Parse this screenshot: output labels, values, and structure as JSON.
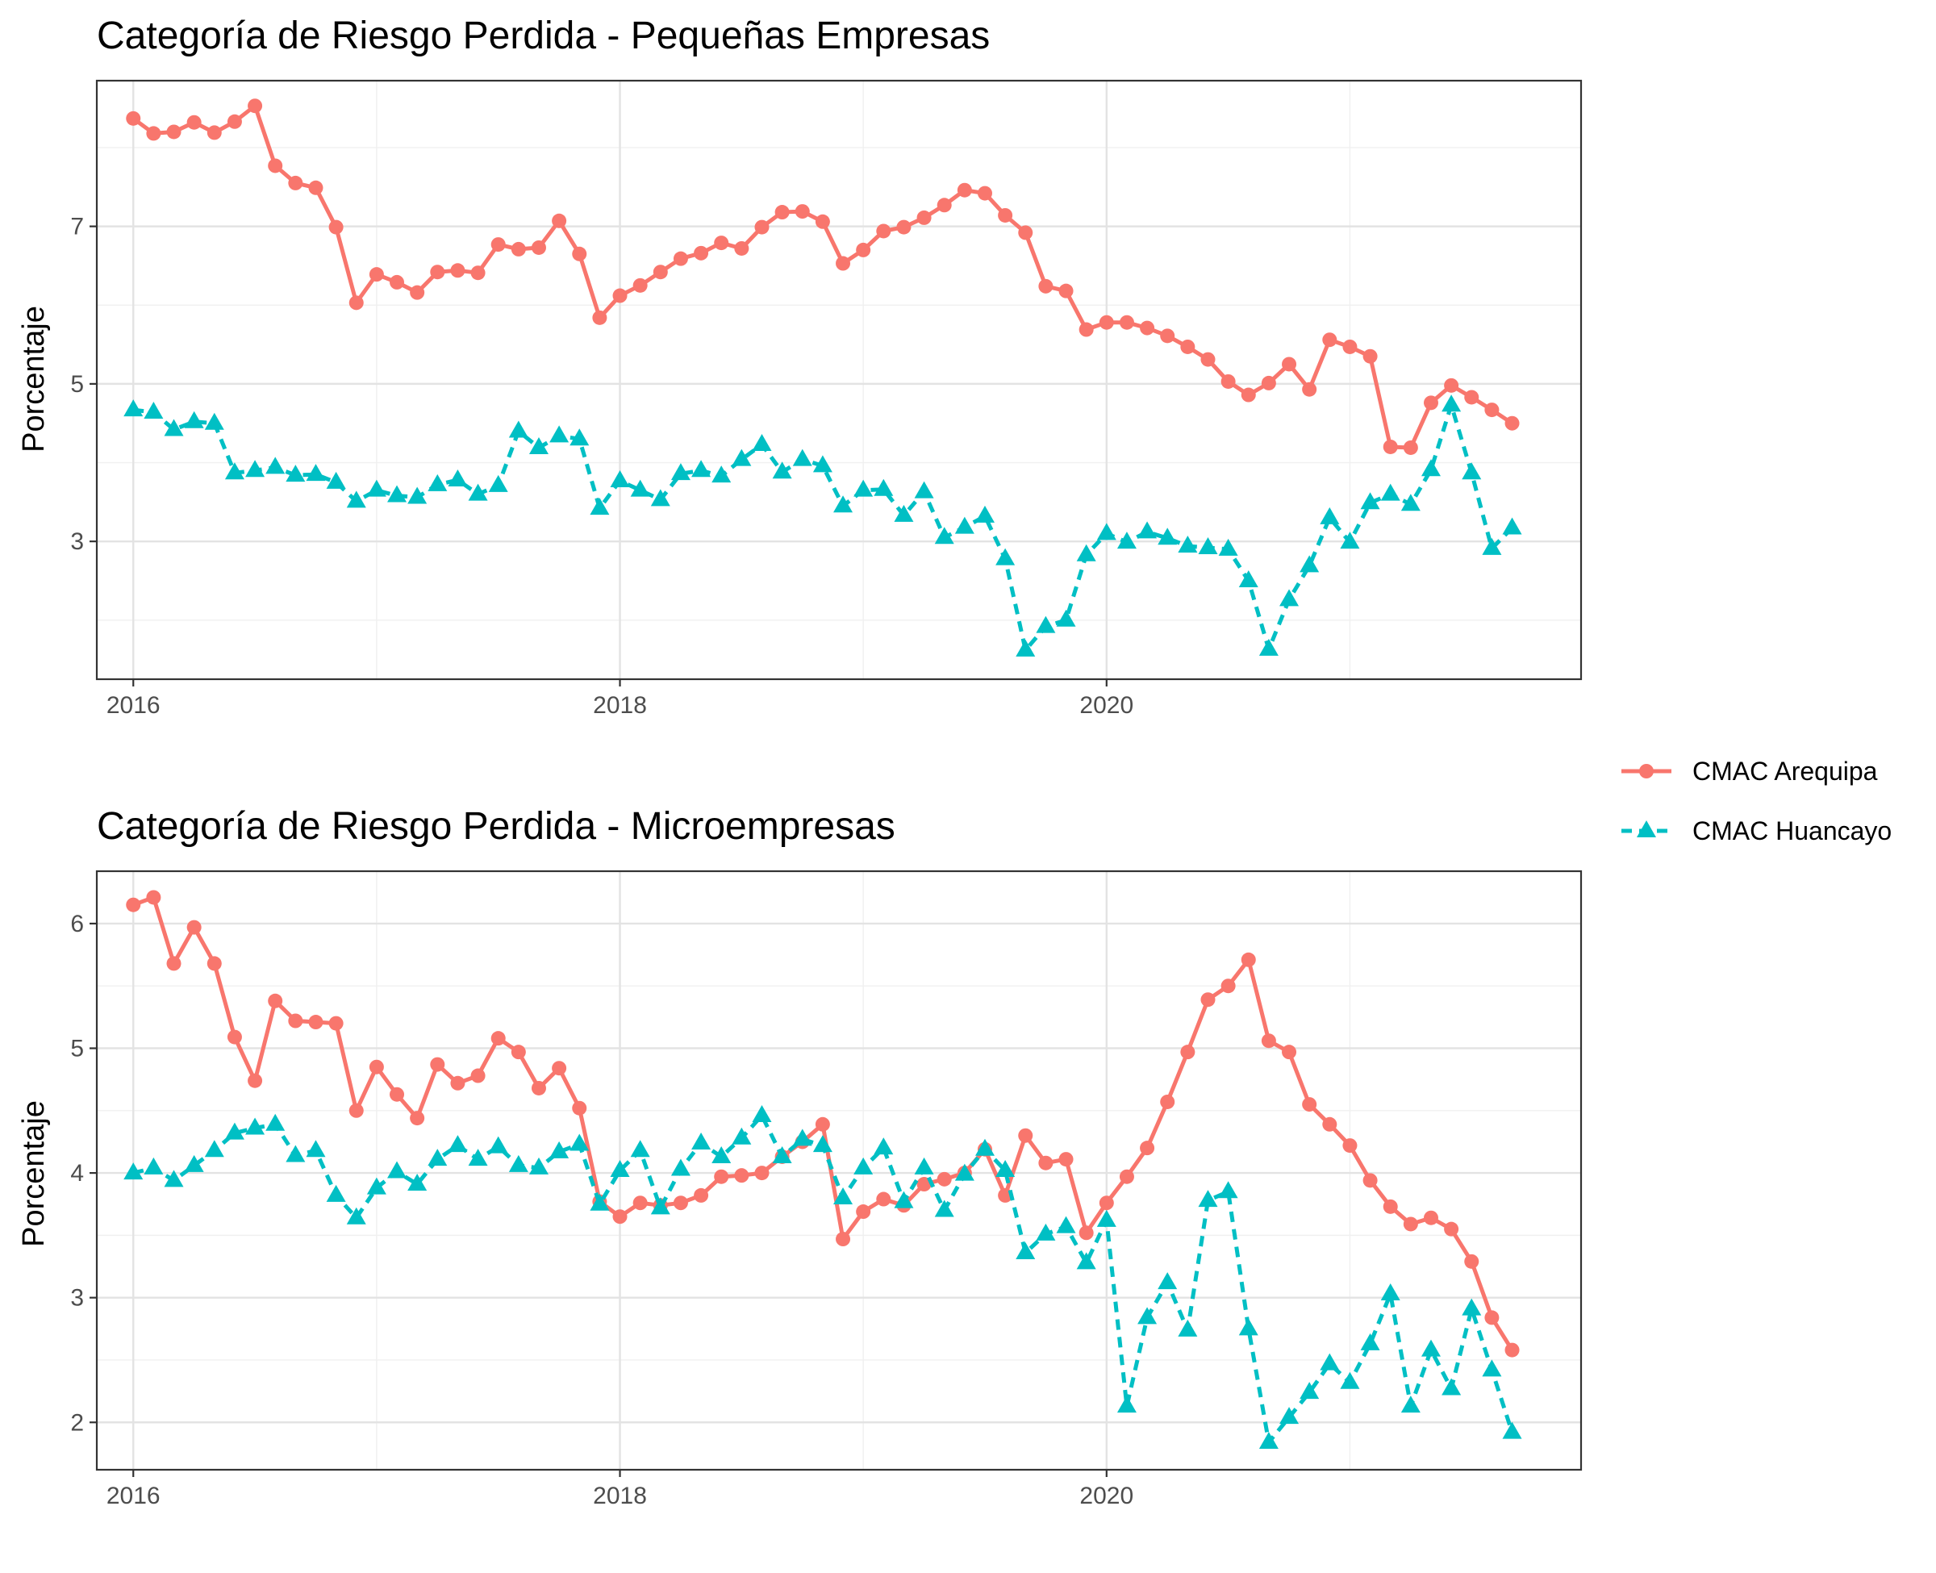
{
  "legend": {
    "items": [
      {
        "label": "CMAC Arequipa",
        "color": "#F8766D",
        "shape": "circle",
        "linetype": "solid"
      },
      {
        "label": "CMAC Huancayo",
        "color": "#00BFC4",
        "shape": "triangle",
        "linetype": "dashed"
      }
    ]
  },
  "chart_data": [
    {
      "type": "line",
      "title": "Categoría de Riesgo Perdida - Pequeñas Empresas",
      "xlabel": "",
      "ylabel": "Porcentaje",
      "x_start": "2016-01",
      "x_frequency": "monthly",
      "xlim": [
        2015.85,
        2021.95
      ],
      "xticks": [
        2016,
        2018,
        2020
      ],
      "xtick_labels": [
        "2016",
        "2018",
        "2020"
      ],
      "ylim": [
        1.25,
        8.85
      ],
      "yticks": [
        3,
        5,
        7
      ],
      "ytick_labels": [
        "3",
        "5",
        "7"
      ],
      "grid": true,
      "legend_position": "right",
      "series": [
        {
          "name": "CMAC Arequipa",
          "color": "#F8766D",
          "marker": "circle",
          "dash": "solid",
          "values": [
            8.37,
            8.18,
            8.2,
            8.32,
            8.19,
            8.33,
            8.53,
            7.77,
            7.55,
            7.49,
            6.99,
            6.03,
            6.39,
            6.29,
            6.16,
            6.42,
            6.44,
            6.41,
            6.77,
            6.71,
            6.73,
            7.07,
            6.65,
            5.84,
            6.12,
            6.25,
            6.42,
            6.59,
            6.66,
            6.79,
            6.72,
            6.99,
            7.18,
            7.19,
            7.06,
            6.53,
            6.7,
            6.94,
            6.99,
            7.11,
            7.27,
            7.46,
            7.42,
            7.14,
            6.92,
            6.24,
            6.18,
            5.69,
            5.78,
            5.78,
            5.71,
            5.61,
            5.47,
            5.31,
            5.03,
            4.86,
            5.01,
            5.25,
            4.93,
            5.56,
            5.47,
            5.35,
            4.2,
            4.19,
            4.76,
            4.98,
            4.83,
            4.67,
            4.5
          ]
        },
        {
          "name": "CMAC Huancayo",
          "color": "#00BFC4",
          "marker": "triangle",
          "dash": "dashed",
          "values": [
            4.67,
            4.64,
            4.42,
            4.52,
            4.5,
            3.87,
            3.9,
            3.94,
            3.84,
            3.85,
            3.75,
            3.51,
            3.65,
            3.58,
            3.56,
            3.72,
            3.78,
            3.6,
            3.71,
            4.4,
            4.19,
            4.34,
            4.3,
            3.42,
            3.77,
            3.65,
            3.53,
            3.86,
            3.9,
            3.83,
            4.04,
            4.23,
            3.88,
            4.04,
            3.96,
            3.45,
            3.65,
            3.66,
            3.33,
            3.63,
            3.05,
            3.18,
            3.32,
            2.78,
            1.62,
            1.92,
            2.0,
            2.83,
            3.1,
            2.99,
            3.12,
            3.04,
            2.94,
            2.92,
            2.9,
            2.5,
            1.63,
            2.26,
            2.69,
            3.3,
            2.99,
            3.49,
            3.6,
            3.47,
            3.91,
            4.73,
            3.87,
            2.91,
            3.17
          ]
        }
      ]
    },
    {
      "type": "line",
      "title": "Categoría de Riesgo Perdida - Microempresas",
      "xlabel": "",
      "ylabel": "Porcentaje",
      "x_start": "2016-01",
      "x_frequency": "monthly",
      "xlim": [
        2015.85,
        2021.95
      ],
      "xticks": [
        2016,
        2018,
        2020
      ],
      "xtick_labels": [
        "2016",
        "2018",
        "2020"
      ],
      "ylim": [
        1.62,
        6.42
      ],
      "yticks": [
        2,
        3,
        4,
        5,
        6
      ],
      "ytick_labels": [
        "2",
        "3",
        "4",
        "5",
        "6"
      ],
      "grid": true,
      "legend_position": "right",
      "series": [
        {
          "name": "CMAC Arequipa",
          "color": "#F8766D",
          "marker": "circle",
          "dash": "solid",
          "values": [
            6.15,
            6.21,
            5.68,
            5.97,
            5.68,
            5.09,
            4.74,
            5.38,
            5.22,
            5.21,
            5.2,
            4.5,
            4.85,
            4.63,
            4.44,
            4.87,
            4.72,
            4.78,
            5.08,
            4.97,
            4.68,
            4.84,
            4.52,
            3.77,
            3.65,
            3.76,
            3.74,
            3.76,
            3.82,
            3.97,
            3.98,
            4.0,
            4.13,
            4.25,
            4.39,
            3.47,
            3.69,
            3.79,
            3.74,
            3.91,
            3.95,
            4.0,
            4.19,
            3.82,
            4.3,
            4.08,
            4.11,
            3.52,
            3.76,
            3.97,
            4.2,
            4.57,
            4.97,
            5.39,
            5.5,
            5.71,
            5.06,
            4.97,
            4.55,
            4.39,
            4.22,
            3.94,
            3.73,
            3.59,
            3.64,
            3.55,
            3.29,
            2.84,
            2.58
          ]
        },
        {
          "name": "CMAC Huancayo",
          "color": "#00BFC4",
          "marker": "triangle",
          "dash": "dashed",
          "values": [
            4.0,
            4.04,
            3.94,
            4.06,
            4.18,
            4.32,
            4.36,
            4.39,
            4.14,
            4.18,
            3.82,
            3.64,
            3.88,
            4.01,
            3.91,
            4.11,
            4.22,
            4.11,
            4.21,
            4.06,
            4.04,
            4.17,
            4.23,
            3.75,
            4.02,
            4.18,
            3.72,
            4.03,
            4.24,
            4.13,
            4.28,
            4.46,
            4.13,
            4.27,
            4.22,
            3.8,
            4.04,
            4.2,
            3.77,
            4.04,
            3.7,
            3.99,
            4.19,
            4.02,
            3.36,
            3.51,
            3.57,
            3.28,
            3.62,
            2.13,
            2.84,
            3.12,
            2.74,
            3.78,
            3.85,
            2.75,
            1.84,
            2.04,
            2.24,
            2.47,
            2.32,
            2.63,
            3.03,
            2.13,
            2.58,
            2.27,
            2.91,
            2.42,
            1.92
          ]
        }
      ]
    }
  ]
}
